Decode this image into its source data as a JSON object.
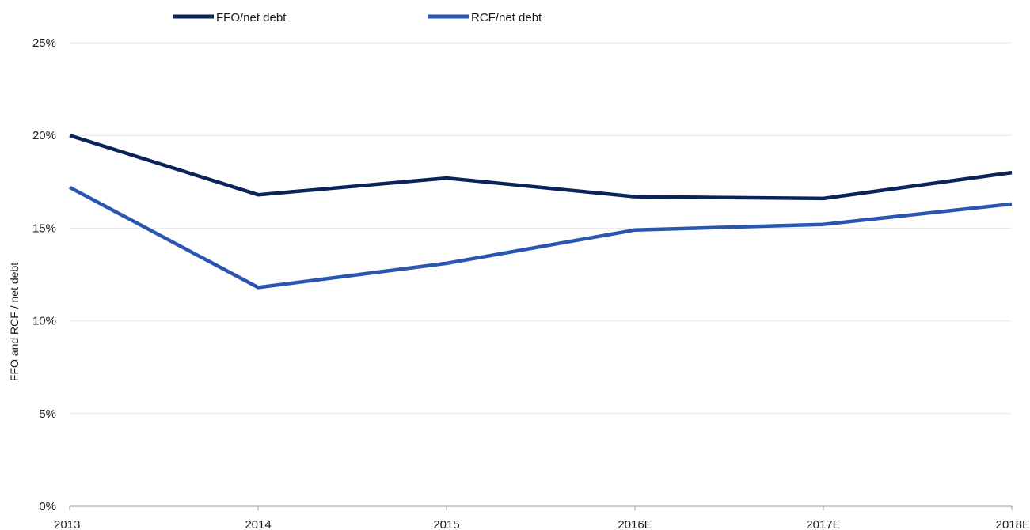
{
  "chart_data": {
    "type": "line",
    "categories": [
      "2013",
      "2014",
      "2015",
      "2016E",
      "2017E",
      "2018E"
    ],
    "series": [
      {
        "name": "FFO/net debt",
        "color": "#0b2359",
        "values": [
          20.0,
          16.8,
          17.7,
          16.7,
          16.6,
          18.0
        ]
      },
      {
        "name": "RCF/net debt",
        "color": "#2a56b0",
        "values": [
          17.2,
          11.8,
          13.1,
          14.9,
          15.2,
          16.3
        ]
      }
    ],
    "title": "",
    "xlabel": "",
    "ylabel": "FFO and RCF / net debt",
    "ylim": [
      0,
      25
    ],
    "yticks": [
      "0%",
      "5%",
      "10%",
      "15%",
      "20%",
      "25%"
    ],
    "ytick_values": [
      0,
      5,
      10,
      15,
      20,
      25
    ],
    "grid": true,
    "legend_position": "top"
  }
}
